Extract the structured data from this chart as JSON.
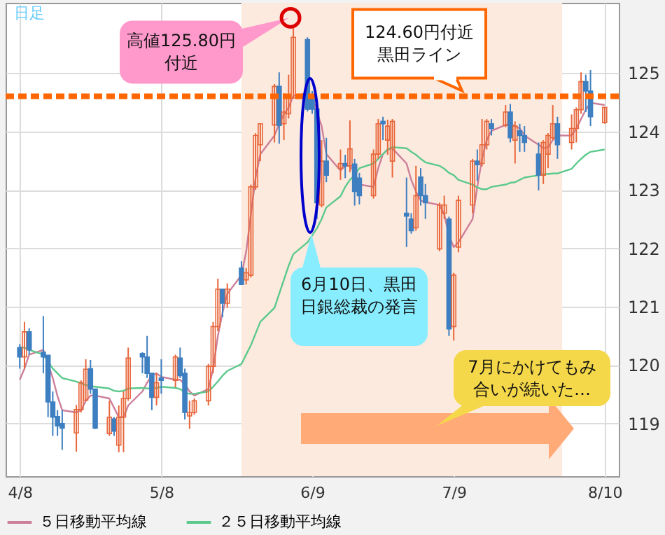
{
  "chart_data": {
    "type": "candlestick",
    "x": [
      "--04-08",
      "--04-09",
      "--04-10",
      "--04-13",
      "--04-14",
      "--04-15",
      "--04-16",
      "--04-17",
      "--04-20",
      "--04-21",
      "--04-22",
      "--04-23",
      "--04-24",
      "--04-27",
      "--04-28",
      "--04-29",
      "--04-30",
      "--05-01",
      "--05-04",
      "--05-05",
      "--05-06",
      "--05-07",
      "--05-08",
      "--05-11",
      "--05-12",
      "--05-13",
      "--05-14",
      "--05-15",
      "--05-18",
      "--05-19",
      "--05-20",
      "--05-21",
      "--05-22",
      "--05-25",
      "--05-26",
      "--05-27",
      "--05-28",
      "--05-29",
      "--06-01",
      "--06-02",
      "--06-03",
      "--06-04",
      "--06-05",
      "--06-08",
      "--06-09",
      "--06-10",
      "--06-11",
      "--06-12",
      "--06-15",
      "--06-16",
      "--06-17",
      "--06-18",
      "--06-19",
      "--06-22",
      "--06-23",
      "--06-24",
      "--06-25",
      "--06-26",
      "--06-29",
      "--06-30",
      "--07-01",
      "--07-02",
      "--07-03",
      "--07-06",
      "--07-07",
      "--07-08",
      "--07-09",
      "--07-10",
      "--07-13",
      "--07-14",
      "--07-15",
      "--07-16",
      "--07-17",
      "--07-20",
      "--07-21",
      "--07-22",
      "--07-23",
      "--07-24",
      "--07-27",
      "--07-28",
      "--07-29",
      "--07-30",
      "--07-31",
      "--08-03",
      "--08-04",
      "--08-05",
      "--08-06",
      "--08-07",
      "--08-10"
    ],
    "ohlc": [
      [
        120.3,
        120.36,
        119.94,
        120.14
      ],
      [
        120.14,
        120.74,
        119.94,
        120.57
      ],
      [
        120.57,
        120.63,
        120.18,
        120.26
      ],
      [
        120.22,
        120.84,
        119.86,
        120.14
      ],
      [
        120.17,
        120.17,
        119.11,
        119.37
      ],
      [
        119.37,
        119.55,
        118.79,
        119.11
      ],
      [
        119.12,
        119.23,
        118.79,
        118.96
      ],
      [
        119.0,
        119.23,
        118.55,
        118.92
      ],
      [
        118.84,
        119.32,
        118.52,
        119.24
      ],
      [
        119.24,
        119.74,
        119.19,
        119.7
      ],
      [
        119.4,
        120.1,
        119.39,
        119.93
      ],
      [
        119.94,
        120.09,
        119.51,
        119.59
      ],
      [
        119.59,
        119.59,
        118.91,
        118.92
      ],
      [
        118.83,
        119.39,
        118.79,
        119.11
      ],
      [
        119.08,
        119.11,
        118.79,
        118.87
      ],
      [
        118.63,
        119.31,
        118.51,
        119.11
      ],
      [
        119.11,
        119.55,
        118.51,
        119.43
      ],
      [
        119.43,
        120.3,
        119.39,
        120.12
      ],
      [
        120.2,
        120.22,
        119.86,
        120.14
      ],
      [
        120.14,
        120.5,
        119.78,
        119.86
      ],
      [
        119.86,
        119.86,
        119.23,
        119.45
      ],
      [
        119.45,
        119.86,
        119.31,
        119.7
      ],
      [
        119.78,
        120.1,
        119.51,
        119.74
      ],
      [
        119.74,
        120.18,
        119.62,
        120.14
      ],
      [
        120.12,
        120.3,
        119.78,
        119.82
      ],
      [
        119.86,
        119.94,
        119.07,
        119.19
      ],
      [
        119.13,
        119.39,
        118.91,
        119.19
      ],
      [
        119.19,
        119.43,
        119.15,
        119.39
      ],
      [
        119.39,
        120.02,
        119.31,
        119.98
      ],
      [
        119.98,
        120.74,
        119.86,
        120.66
      ],
      [
        120.66,
        121.48,
        120.58,
        121.3
      ],
      [
        121.3,
        121.3,
        120.82,
        121.06
      ],
      [
        121.06,
        121.4,
        120.98,
        121.3
      ],
      [
        121.66,
        121.78,
        121.38,
        121.38
      ],
      [
        121.46,
        121.66,
        121.38,
        121.58
      ],
      [
        121.54,
        123.09,
        121.5,
        123.05
      ],
      [
        123.05,
        123.97,
        123.0,
        123.93
      ],
      [
        123.77,
        124.13,
        123.49,
        124.13
      ],
      [
        124.11,
        124.81,
        123.81,
        124.77
      ],
      [
        124.77,
        125.01,
        123.79,
        124.1
      ],
      [
        124.13,
        124.65,
        123.85,
        124.33
      ],
      [
        124.3,
        124.97,
        124.22,
        124.61
      ],
      [
        124.57,
        125.8,
        124.57,
        125.61
      ],
      [
        125.57,
        125.61,
        124.34,
        124.38
      ],
      [
        124.57,
        124.69,
        124.3,
        124.38
      ],
      [
        124.38,
        124.42,
        122.5,
        122.78
      ],
      [
        122.74,
        123.85,
        122.7,
        123.49
      ],
      [
        123.49,
        123.89,
        123.13,
        123.25
      ],
      [
        123.37,
        123.69,
        123.17,
        123.45
      ],
      [
        123.45,
        123.6,
        123.2,
        123.41
      ],
      [
        123.41,
        124.19,
        123.3,
        123.7
      ],
      [
        123.44,
        123.53,
        122.73,
        122.97
      ],
      [
        123.2,
        123.29,
        122.75,
        122.9
      ],
      [
        122.9,
        123.69,
        122.85,
        123.61
      ],
      [
        123.61,
        124.21,
        123.53,
        124.13
      ],
      [
        124.17,
        124.25,
        123.85,
        124.13
      ],
      [
        123.85,
        124.2,
        123.6,
        124.09
      ],
      [
        123.49,
        124.21,
        123.21,
        124.17
      ],
      [
        122.6,
        123.21,
        122.02,
        122.55
      ],
      [
        122.5,
        122.6,
        122.25,
        122.3
      ],
      [
        122.35,
        123.41,
        122.3,
        122.9
      ],
      [
        123.22,
        123.37,
        122.73,
        122.9
      ],
      [
        122.9,
        123.1,
        122.5,
        122.78
      ],
      [
        121.99,
        122.78,
        121.95,
        122.74
      ],
      [
        122.6,
        122.9,
        122.5,
        122.74
      ],
      [
        122.5,
        122.54,
        120.5,
        120.62
      ],
      [
        120.66,
        121.58,
        120.42,
        121.54
      ],
      [
        122.02,
        122.9,
        121.93,
        122.82
      ],
      [
        122.74,
        123.53,
        122.6,
        123.49
      ],
      [
        123.49,
        123.69,
        123.15,
        123.43
      ],
      [
        123.45,
        124.21,
        123.4,
        123.77
      ],
      [
        123.77,
        124.21,
        123.69,
        124.17
      ],
      [
        124.13,
        124.21,
        123.93,
        124.05
      ],
      [
        124.1,
        124.45,
        124.07,
        124.33
      ],
      [
        124.33,
        124.47,
        123.81,
        123.89
      ],
      [
        123.85,
        124.17,
        123.45,
        124.09
      ],
      [
        124.01,
        124.13,
        123.65,
        123.93
      ],
      [
        123.93,
        124.09,
        123.65,
        123.81
      ],
      [
        123.61,
        123.81,
        122.99,
        123.25
      ],
      [
        123.25,
        123.85,
        123.1,
        123.81
      ],
      [
        123.61,
        123.97,
        123.37,
        123.93
      ],
      [
        123.89,
        124.45,
        123.85,
        124.13
      ],
      [
        124.13,
        124.25,
        123.53,
        123.77
      ],
      [
        123.81,
        124.29,
        123.69,
        124.05
      ],
      [
        124.05,
        124.41,
        123.81,
        124.37
      ],
      [
        124.37,
        125.01,
        124.3,
        124.85
      ],
      [
        124.85,
        124.97,
        124.33,
        124.69
      ],
      [
        124.69,
        125.05,
        124.09,
        124.25
      ],
      [
        124.15,
        124.41,
        124.13,
        124.41
      ]
    ],
    "series": [
      {
        "name": "５日移動平均線",
        "type": "line",
        "color": "#cc7f99",
        "values": [
          119.75,
          119.94,
          120.18,
          120.26,
          null,
          119.78,
          119.47,
          119.23,
          119.19,
          119.23,
          119.39,
          119.48,
          119.48,
          119.43,
          119.27,
          119.11,
          119.11,
          119.31,
          119.55,
          119.7,
          119.82,
          119.86,
          119.8,
          119.75,
          119.75,
          119.67,
          119.55,
          119.48,
          119.59,
          119.94,
          120.5,
          120.9,
          121.22,
          121.54,
          121.94,
          122.58,
          123.21,
          123.61,
          123.93,
          124.13,
          124.29,
          124.41,
          124.61,
          124.65,
          124.61,
          124.33,
          124.09,
          123.61,
          123.33,
          123.41,
          123.41,
          123.29,
          123.09,
          123.05,
          123.37,
          123.61,
          123.69,
          123.71,
          123.45,
          123.17,
          122.97,
          122.82,
          122.79,
          122.74,
          122.58,
          122.22,
          122.02,
          122.1,
          122.5,
          123.05,
          123.53,
          123.85,
          124.01,
          124.11,
          124.13,
          124.09,
          124.05,
          123.93,
          123.77,
          123.71,
          123.73,
          123.85,
          123.93,
          123.93,
          124.05,
          124.21,
          124.37,
          124.49,
          124.45
        ]
      },
      {
        "name": "２５日移動平均線",
        "type": "line",
        "color": "#5cc98c",
        "values": [
          120.3,
          120.3,
          120.26,
          120.18,
          120.06,
          119.94,
          119.86,
          119.78,
          119.72,
          119.69,
          119.66,
          119.64,
          119.63,
          119.6,
          119.56,
          119.55,
          119.56,
          119.6,
          119.61,
          119.6,
          119.6,
          119.61,
          119.63,
          119.61,
          119.59,
          119.53,
          119.51,
          119.51,
          119.55,
          119.63,
          119.72,
          119.82,
          119.9,
          120.02,
          120.18,
          120.34,
          120.54,
          120.74,
          120.98,
          121.22,
          121.46,
          121.7,
          121.9,
          122.1,
          122.22,
          122.34,
          122.5,
          122.7,
          122.89,
          123.05,
          123.17,
          123.25,
          123.37,
          123.45,
          123.53,
          123.61,
          123.69,
          123.73,
          123.71,
          123.65,
          123.6,
          123.53,
          123.47,
          123.41,
          123.36,
          123.29,
          123.25,
          123.17,
          123.09,
          123.04,
          123.01,
          123.01,
          123.05,
          123.09,
          123.12,
          123.13,
          123.17,
          123.21,
          123.25,
          123.27,
          123.27,
          123.28,
          123.28,
          123.36,
          123.45,
          123.53,
          123.6,
          123.65,
          123.69
        ]
      }
    ],
    "xlim": [
      "--04-05",
      "--08-13"
    ],
    "xticks": [
      {
        "value": "--04-08",
        "label": "4/8"
      },
      {
        "value": "--05-08",
        "label": "5/8"
      },
      {
        "value": "--06-09",
        "label": "6/9"
      },
      {
        "value": "--07-09",
        "label": "7/9"
      },
      {
        "value": "--08-10",
        "label": "8/10"
      }
    ],
    "ylim": [
      118.1,
      126.2
    ],
    "yticks": [
      119,
      120,
      121,
      122,
      123,
      124,
      125
    ],
    "grid": true,
    "legend": "bottom",
    "marker": "none",
    "line_style": "solid",
    "ref_lines": [
      {
        "axis": "y",
        "value": 124.6,
        "label": "124.60円付近黒田ライン",
        "color": "#ff6600",
        "line_style": "dashed"
      }
    ],
    "bands": [
      {
        "axis": "x",
        "from": "--05-25",
        "to": "--08-01",
        "color": "#fdeade"
      }
    ],
    "annotations": [
      "日足",
      "高値125.80円付近",
      "6月10日、黒田日銀総裁の発言",
      "7月にかけてもみ合いが続いた…"
    ]
  }
}
